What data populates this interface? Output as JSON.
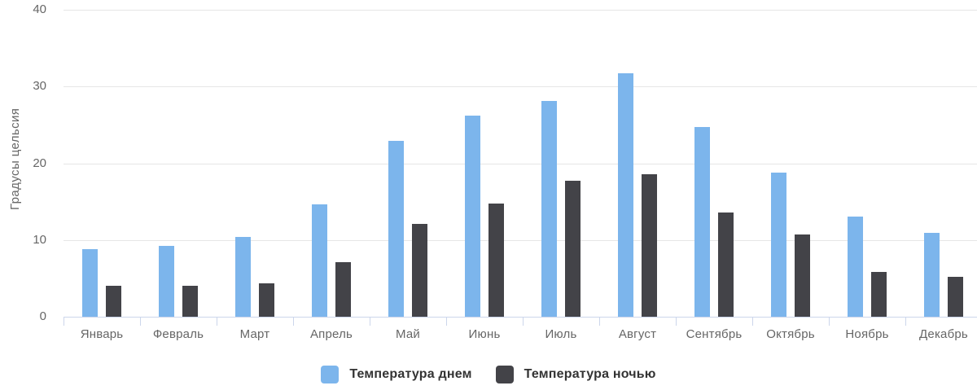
{
  "chart_data": {
    "type": "bar",
    "title": "",
    "categories": [
      "Январь",
      "Февраль",
      "Март",
      "Апрель",
      "Май",
      "Июнь",
      "Июль",
      "Август",
      "Сентябрь",
      "Октябрь",
      "Ноябрь",
      "Декабрь"
    ],
    "series": [
      {
        "name": "Температура днем",
        "color": "#7cb5ec",
        "values": [
          8.8,
          9.2,
          10.4,
          14.6,
          22.9,
          26.2,
          28.1,
          31.7,
          24.7,
          18.8,
          13.0,
          10.9
        ]
      },
      {
        "name": "Температура ночью",
        "color": "#434348",
        "values": [
          4.0,
          4.0,
          4.4,
          7.1,
          12.1,
          14.7,
          17.7,
          18.6,
          13.6,
          10.7,
          5.8,
          5.2
        ]
      }
    ],
    "xlabel": "",
    "ylabel": "Градусы цельсия",
    "ylim": [
      0,
      40
    ],
    "yticks": [
      0,
      10,
      20,
      30,
      40
    ],
    "grid": true,
    "legend_position": "bottom",
    "colors": {
      "day_bar": "#7cb5ec",
      "night_bar": "#434348",
      "grid_line": "#e6e6e6",
      "axis_line": "#ccd6eb",
      "tick_label": "#666666",
      "axis_title": "#666666",
      "legend_text": "#333333",
      "background": "#ffffff"
    }
  }
}
